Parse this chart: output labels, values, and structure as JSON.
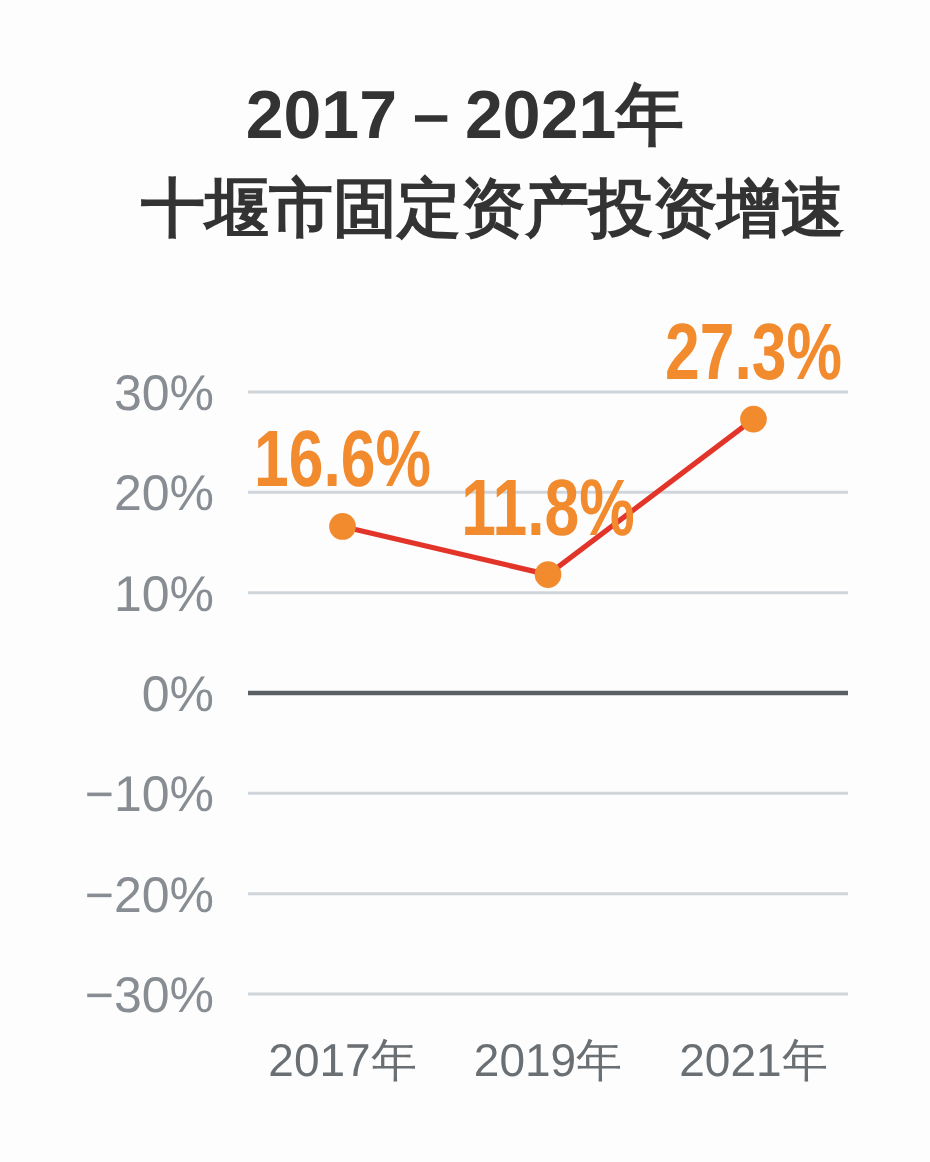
{
  "chart_data": {
    "type": "line",
    "title": "2017－2021年",
    "subtitle": "十堰市固定资产投资增速",
    "categories": [
      "2017年",
      "2019年",
      "2021年"
    ],
    "series": [
      {
        "color": "#e3342a",
        "colors": [
          "#f28a2e",
          "#f28a2e",
          "#f28a2e"
        ],
        "values": [
          16.6,
          11.8,
          27.3
        ],
        "value_labels": [
          "16.6%",
          "11.8%",
          "27.3%"
        ]
      }
    ],
    "ylim": [
      -30,
      30
    ],
    "yticks": [
      {
        "value": -30,
        "label": "−30%"
      },
      {
        "value": -20,
        "label": "−20%"
      },
      {
        "value": -10,
        "label": "−10%"
      },
      {
        "value": 0,
        "label": "0%"
      },
      {
        "value": 10,
        "label": "10%"
      },
      {
        "value": 20,
        "label": "20%"
      },
      {
        "value": 30,
        "label": "30%"
      }
    ],
    "grid": "y",
    "marker": "circle",
    "line_style": "solid"
  }
}
